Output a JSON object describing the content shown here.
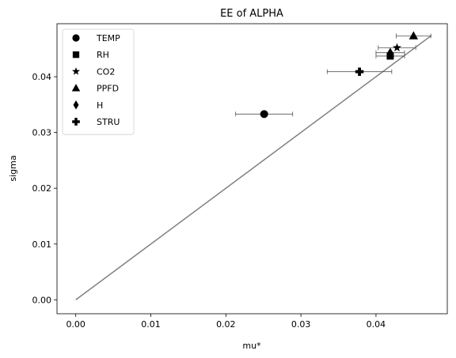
{
  "chart_data": {
    "type": "scatter",
    "title": "EE of ALPHA",
    "xlabel": "mu*",
    "ylabel": "sigma",
    "xlim": [
      -0.0025,
      0.0495
    ],
    "ylim": [
      -0.0025,
      0.0495
    ],
    "xticks": [
      0.0,
      0.01,
      0.02,
      0.03,
      0.04
    ],
    "xtick_labels": [
      "0.00",
      "0.01",
      "0.02",
      "0.03",
      "0.04"
    ],
    "yticks": [
      0.0,
      0.01,
      0.02,
      0.03,
      0.04
    ],
    "ytick_labels": [
      "0.00",
      "0.01",
      "0.02",
      "0.03",
      "0.04"
    ],
    "grid": false,
    "legend": "top-left",
    "reference_line": {
      "x": [
        0.0,
        0.0474
      ],
      "y": [
        0.0,
        0.0474
      ],
      "color": "#808080"
    },
    "errorbar_color": "#555555",
    "point_color": "#000000",
    "series": [
      {
        "name": "TEMP",
        "marker": "circle",
        "x": 0.0251,
        "y": 0.0333,
        "xerr": 0.0038
      },
      {
        "name": "RH",
        "marker": "square",
        "x": 0.0419,
        "y": 0.0437,
        "xerr": 0.0019
      },
      {
        "name": "CO2",
        "marker": "star",
        "x": 0.0428,
        "y": 0.0452,
        "xerr": 0.0025
      },
      {
        "name": "PPFD",
        "marker": "triangle",
        "x": 0.045,
        "y": 0.0473,
        "xerr": 0.0023
      },
      {
        "name": "H",
        "marker": "diamond",
        "x": 0.0419,
        "y": 0.0443,
        "xerr": 0.0019
      },
      {
        "name": "STRU",
        "marker": "plus",
        "x": 0.0378,
        "y": 0.0409,
        "xerr": 0.0043
      }
    ]
  }
}
